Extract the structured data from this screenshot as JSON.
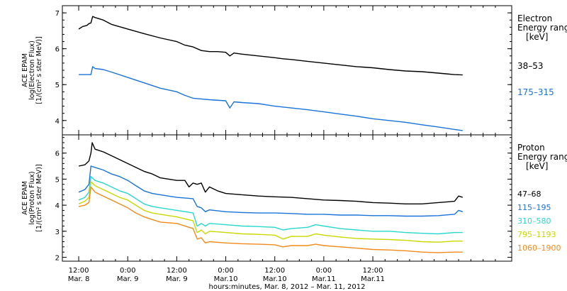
{
  "chart_data": [
    {
      "type": "line",
      "panel": "electron",
      "ylabel_lines": [
        "ACE EPAM",
        "log(Electron Flux)",
        "[1/(cm² s ster MeV)]"
      ],
      "ylim": [
        3.6,
        7.2
      ],
      "yticks": [
        4,
        5,
        6,
        7
      ],
      "legend_title_lines": [
        "Electron",
        "Energy ranges",
        "[keV]"
      ],
      "series": [
        {
          "name": "38–53",
          "color": "#000000",
          "points": [
            [
              0,
              6.55
            ],
            [
              1,
              6.62
            ],
            [
              2,
              6.65
            ],
            [
              2.5,
              6.7
            ],
            [
              3,
              6.72
            ],
            [
              3.4,
              6.9
            ],
            [
              4,
              6.87
            ],
            [
              6,
              6.8
            ],
            [
              8,
              6.68
            ],
            [
              12,
              6.55
            ],
            [
              16,
              6.42
            ],
            [
              20,
              6.3
            ],
            [
              24,
              6.2
            ],
            [
              26,
              6.1
            ],
            [
              28,
              6.05
            ],
            [
              30,
              5.95
            ],
            [
              32,
              5.92
            ],
            [
              34,
              5.92
            ],
            [
              36,
              5.9
            ],
            [
              37,
              5.8
            ],
            [
              38,
              5.88
            ],
            [
              40,
              5.85
            ],
            [
              44,
              5.8
            ],
            [
              48,
              5.75
            ],
            [
              50,
              5.72
            ],
            [
              52,
              5.7
            ],
            [
              56,
              5.65
            ],
            [
              60,
              5.6
            ],
            [
              64,
              5.55
            ],
            [
              68,
              5.5
            ],
            [
              72,
              5.47
            ],
            [
              76,
              5.42
            ],
            [
              80,
              5.38
            ],
            [
              84,
              5.36
            ],
            [
              88,
              5.32
            ],
            [
              92,
              5.28
            ],
            [
              94,
              5.27
            ]
          ]
        },
        {
          "name": "175–315",
          "color": "#1a73d9",
          "points": [
            [
              0,
              5.28
            ],
            [
              2,
              5.28
            ],
            [
              3,
              5.28
            ],
            [
              3.4,
              5.5
            ],
            [
              4,
              5.45
            ],
            [
              6,
              5.42
            ],
            [
              8,
              5.35
            ],
            [
              12,
              5.2
            ],
            [
              16,
              5.05
            ],
            [
              20,
              4.9
            ],
            [
              24,
              4.8
            ],
            [
              26,
              4.7
            ],
            [
              28,
              4.62
            ],
            [
              30,
              4.6
            ],
            [
              32,
              4.58
            ],
            [
              36,
              4.55
            ],
            [
              37,
              4.35
            ],
            [
              38,
              4.52
            ],
            [
              40,
              4.5
            ],
            [
              44,
              4.47
            ],
            [
              48,
              4.4
            ],
            [
              52,
              4.35
            ],
            [
              56,
              4.3
            ],
            [
              60,
              4.24
            ],
            [
              64,
              4.18
            ],
            [
              68,
              4.12
            ],
            [
              72,
              4.05
            ],
            [
              76,
              4.0
            ],
            [
              80,
              3.95
            ],
            [
              84,
              3.88
            ],
            [
              88,
              3.82
            ],
            [
              92,
              3.75
            ],
            [
              94,
              3.72
            ]
          ]
        }
      ]
    },
    {
      "type": "line",
      "panel": "proton",
      "ylabel_lines": [
        "ACE EPAM",
        "log(Proton Flux)",
        "[1/(cm² s ster MeV)]"
      ],
      "ylim": [
        1.85,
        6.7
      ],
      "yticks": [
        2,
        3,
        4,
        5,
        6
      ],
      "legend_title_lines": [
        "Proton",
        "Energy ranges",
        "[keV]"
      ],
      "series": [
        {
          "name": "47–68",
          "color": "#000000",
          "points": [
            [
              0,
              5.5
            ],
            [
              1.5,
              5.55
            ],
            [
              2.5,
              5.7
            ],
            [
              3,
              6.0
            ],
            [
              3.3,
              6.4
            ],
            [
              4,
              6.15
            ],
            [
              6,
              6.05
            ],
            [
              8,
              5.9
            ],
            [
              10,
              5.75
            ],
            [
              12,
              5.6
            ],
            [
              14,
              5.45
            ],
            [
              16,
              5.3
            ],
            [
              18,
              5.2
            ],
            [
              20,
              5.05
            ],
            [
              24,
              4.95
            ],
            [
              26,
              4.95
            ],
            [
              27,
              4.7
            ],
            [
              28,
              4.85
            ],
            [
              29,
              4.8
            ],
            [
              30,
              4.85
            ],
            [
              31,
              4.5
            ],
            [
              32,
              4.7
            ],
            [
              34,
              4.55
            ],
            [
              36,
              4.45
            ],
            [
              40,
              4.4
            ],
            [
              44,
              4.35
            ],
            [
              48,
              4.32
            ],
            [
              52,
              4.3
            ],
            [
              56,
              4.25
            ],
            [
              60,
              4.2
            ],
            [
              64,
              4.18
            ],
            [
              68,
              4.15
            ],
            [
              72,
              4.1
            ],
            [
              76,
              4.08
            ],
            [
              80,
              4.05
            ],
            [
              84,
              4.05
            ],
            [
              88,
              4.1
            ],
            [
              92,
              4.15
            ],
            [
              93,
              4.35
            ],
            [
              94,
              4.3
            ]
          ]
        },
        {
          "name": "115–195",
          "color": "#1a73d9",
          "points": [
            [
              0,
              4.5
            ],
            [
              1.5,
              4.6
            ],
            [
              2.5,
              4.8
            ],
            [
              3,
              5.5
            ],
            [
              4,
              5.45
            ],
            [
              6,
              5.35
            ],
            [
              8,
              5.2
            ],
            [
              10,
              5.1
            ],
            [
              12,
              4.95
            ],
            [
              14,
              4.75
            ],
            [
              16,
              4.55
            ],
            [
              18,
              4.45
            ],
            [
              20,
              4.4
            ],
            [
              24,
              4.3
            ],
            [
              28,
              4.25
            ],
            [
              29,
              3.95
            ],
            [
              30,
              3.9
            ],
            [
              31,
              3.75
            ],
            [
              32,
              3.82
            ],
            [
              36,
              3.75
            ],
            [
              40,
              3.72
            ],
            [
              44,
              3.7
            ],
            [
              48,
              3.7
            ],
            [
              52,
              3.68
            ],
            [
              56,
              3.65
            ],
            [
              60,
              3.65
            ],
            [
              64,
              3.62
            ],
            [
              68,
              3.62
            ],
            [
              72,
              3.6
            ],
            [
              76,
              3.6
            ],
            [
              80,
              3.58
            ],
            [
              84,
              3.58
            ],
            [
              88,
              3.6
            ],
            [
              92,
              3.65
            ],
            [
              93,
              3.8
            ],
            [
              94,
              3.75
            ]
          ]
        },
        {
          "name": "310–580",
          "color": "#2ad8cf",
          "points": [
            [
              0,
              4.2
            ],
            [
              1.5,
              4.3
            ],
            [
              2.5,
              4.5
            ],
            [
              3,
              5.1
            ],
            [
              4,
              4.95
            ],
            [
              6,
              4.85
            ],
            [
              8,
              4.7
            ],
            [
              10,
              4.55
            ],
            [
              12,
              4.45
            ],
            [
              14,
              4.25
            ],
            [
              16,
              4.05
            ],
            [
              18,
              3.95
            ],
            [
              20,
              3.9
            ],
            [
              24,
              3.8
            ],
            [
              28,
              3.7
            ],
            [
              29,
              3.2
            ],
            [
              30,
              3.3
            ],
            [
              31,
              3.2
            ],
            [
              32,
              3.3
            ],
            [
              36,
              3.25
            ],
            [
              40,
              3.2
            ],
            [
              44,
              3.18
            ],
            [
              48,
              3.15
            ],
            [
              50,
              3.05
            ],
            [
              52,
              3.1
            ],
            [
              56,
              3.15
            ],
            [
              58,
              3.25
            ],
            [
              60,
              3.2
            ],
            [
              64,
              3.1
            ],
            [
              68,
              3.05
            ],
            [
              72,
              3.0
            ],
            [
              76,
              3.0
            ],
            [
              80,
              2.95
            ],
            [
              84,
              2.92
            ],
            [
              88,
              2.9
            ],
            [
              92,
              2.95
            ],
            [
              94,
              2.95
            ]
          ]
        },
        {
          "name": "795–1193",
          "color": "#c8d800",
          "points": [
            [
              0,
              4.05
            ],
            [
              1.5,
              4.15
            ],
            [
              2.5,
              4.3
            ],
            [
              3,
              4.9
            ],
            [
              4,
              4.75
            ],
            [
              6,
              4.6
            ],
            [
              8,
              4.45
            ],
            [
              10,
              4.3
            ],
            [
              12,
              4.2
            ],
            [
              14,
              4.0
            ],
            [
              16,
              3.8
            ],
            [
              18,
              3.7
            ],
            [
              20,
              3.65
            ],
            [
              24,
              3.55
            ],
            [
              28,
              3.4
            ],
            [
              29,
              2.95
            ],
            [
              30,
              3.05
            ],
            [
              31,
              2.9
            ],
            [
              32,
              3.0
            ],
            [
              36,
              2.95
            ],
            [
              40,
              2.9
            ],
            [
              44,
              2.88
            ],
            [
              48,
              2.85
            ],
            [
              50,
              2.7
            ],
            [
              52,
              2.8
            ],
            [
              56,
              2.8
            ],
            [
              58,
              2.9
            ],
            [
              60,
              2.85
            ],
            [
              64,
              2.78
            ],
            [
              68,
              2.72
            ],
            [
              72,
              2.7
            ],
            [
              76,
              2.68
            ],
            [
              80,
              2.65
            ],
            [
              84,
              2.6
            ],
            [
              88,
              2.58
            ],
            [
              92,
              2.62
            ],
            [
              94,
              2.62
            ]
          ]
        },
        {
          "name": "1060–1900",
          "color": "#f28a1c",
          "points": [
            [
              0,
              3.95
            ],
            [
              1.5,
              4.0
            ],
            [
              2.5,
              4.1
            ],
            [
              3,
              4.7
            ],
            [
              4,
              4.5
            ],
            [
              6,
              4.35
            ],
            [
              8,
              4.2
            ],
            [
              10,
              4.05
            ],
            [
              12,
              3.9
            ],
            [
              14,
              3.7
            ],
            [
              16,
              3.55
            ],
            [
              18,
              3.45
            ],
            [
              20,
              3.35
            ],
            [
              24,
              3.3
            ],
            [
              28,
              3.1
            ],
            [
              29,
              2.7
            ],
            [
              30,
              2.75
            ],
            [
              31,
              2.55
            ],
            [
              32,
              2.6
            ],
            [
              36,
              2.55
            ],
            [
              40,
              2.52
            ],
            [
              44,
              2.5
            ],
            [
              48,
              2.48
            ],
            [
              50,
              2.4
            ],
            [
              52,
              2.45
            ],
            [
              56,
              2.45
            ],
            [
              58,
              2.5
            ],
            [
              60,
              2.45
            ],
            [
              64,
              2.4
            ],
            [
              68,
              2.35
            ],
            [
              72,
              2.3
            ],
            [
              76,
              2.28
            ],
            [
              80,
              2.25
            ],
            [
              84,
              2.2
            ],
            [
              88,
              2.18
            ],
            [
              92,
              2.2
            ],
            [
              94,
              2.2
            ]
          ]
        }
      ]
    }
  ],
  "xaxis": {
    "label": "hours:minutes, Mar. 8, 2012 – Mar. 11, 2012",
    "xlim": [
      -4,
      106
    ],
    "ticks": [
      {
        "x": 0,
        "time": "12:00",
        "date": "Mar. 8"
      },
      {
        "x": 12,
        "time": "0:00",
        "date": "Mar. 9"
      },
      {
        "x": 24,
        "time": "12:00",
        "date": "Mar. 9"
      },
      {
        "x": 36,
        "time": "0:00",
        "date": "Mar.10"
      },
      {
        "x": 48,
        "time": "12:00",
        "date": "Mar.10"
      },
      {
        "x": 60,
        "time": "0:00",
        "date": "Mar.11"
      },
      {
        "x": 72,
        "time": "12:00",
        "date": "Mar.11"
      }
    ]
  }
}
